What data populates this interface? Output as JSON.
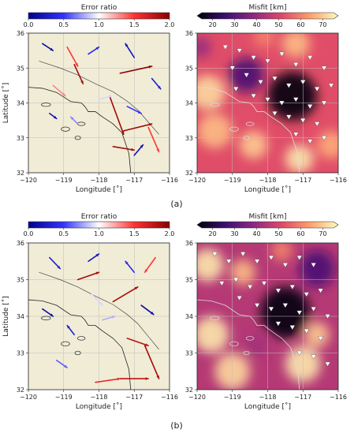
{
  "figure": {
    "subfigure_labels": [
      "(a)",
      "(b)"
    ]
  },
  "colorbars": {
    "error_ratio": {
      "title": "Error ratio",
      "ticks": [
        "0.0",
        "0.5",
        "1.0",
        "1.5",
        "2.0"
      ],
      "range": [
        0,
        2
      ],
      "colors": [
        "#00008b",
        "#3333ff",
        "#ffffff",
        "#ff3333",
        "#8b0000"
      ]
    },
    "misfit": {
      "title": "Misfit [km]",
      "ticks": [
        "20",
        "30",
        "40",
        "50",
        "60",
        "70"
      ],
      "range": [
        13,
        77
      ],
      "colors": [
        "#000004",
        "#3b0f70",
        "#8c2981",
        "#de4968",
        "#fe9f6d",
        "#fcfdbf"
      ]
    }
  },
  "colors": {
    "land_background": "#f1ecd6",
    "fault_line": "#4a4a4a",
    "station_marker": "#ffffff"
  },
  "chart_data": [
    {
      "id": "a-error-ratio",
      "type": "vector-map",
      "xlabel": "Longitude [˚]",
      "ylabel": "Latitude [˚]",
      "xlim": [
        -120,
        -116
      ],
      "ylim": [
        32,
        36
      ],
      "xticks": [
        "−120",
        "−119",
        "−118",
        "−117",
        "−116"
      ],
      "yticks": [
        "32",
        "33",
        "34",
        "35",
        "36"
      ],
      "grid": true,
      "colorbar": "error_ratio",
      "vectors": [
        {
          "lon": -118.9,
          "lat": 35.6,
          "dlon": 0.3,
          "dlat": -0.55,
          "ratio": 1.5
        },
        {
          "lon": -118.7,
          "lat": 35.1,
          "dlon": 0.25,
          "dlat": -0.55,
          "ratio": 1.9
        },
        {
          "lon": -117.4,
          "lat": 34.85,
          "dlon": 0.9,
          "dlat": 0.2,
          "ratio": 2.0
        },
        {
          "lon": -117.7,
          "lat": 34.2,
          "dlon": 0.4,
          "dlat": -1.1,
          "ratio": 1.9
        },
        {
          "lon": -117.3,
          "lat": 33.2,
          "dlon": 0.8,
          "dlat": 0.2,
          "ratio": 1.9
        },
        {
          "lon": -117.6,
          "lat": 32.75,
          "dlon": 0.6,
          "dlat": -0.1,
          "ratio": 1.9
        },
        {
          "lon": -116.6,
          "lat": 33.3,
          "dlon": 0.3,
          "dlat": -0.7,
          "ratio": 1.5
        },
        {
          "lon": -119.3,
          "lat": 34.5,
          "dlon": 0.35,
          "dlat": -0.3,
          "ratio": 1.3
        },
        {
          "lon": -118.3,
          "lat": 35.4,
          "dlon": 0.3,
          "dlat": 0.2,
          "ratio": 0.4
        },
        {
          "lon": -117.0,
          "lat": 35.3,
          "dlon": -0.25,
          "dlat": 0.4,
          "ratio": 0.2
        },
        {
          "lon": -116.5,
          "lat": 34.7,
          "dlon": 0.25,
          "dlat": -0.3,
          "ratio": 0.3
        },
        {
          "lon": -118.0,
          "lat": 34.1,
          "dlon": 0.35,
          "dlat": 0.1,
          "ratio": 0.9
        },
        {
          "lon": -117.2,
          "lat": 33.9,
          "dlon": 0.4,
          "dlat": -0.2,
          "ratio": 0.5
        },
        {
          "lon": -119.6,
          "lat": 35.7,
          "dlon": 0.3,
          "dlat": -0.2,
          "ratio": 0.1
        },
        {
          "lon": -119.4,
          "lat": 33.7,
          "dlon": 0.2,
          "dlat": -0.15,
          "ratio": 0.2
        },
        {
          "lon": -118.6,
          "lat": 33.4,
          "dlon": -0.2,
          "dlat": 0.2,
          "ratio": 0.7
        },
        {
          "lon": -117.0,
          "lat": 32.5,
          "dlon": 0.25,
          "dlat": 0.3,
          "ratio": 0.15
        }
      ],
      "stations": []
    },
    {
      "id": "a-misfit",
      "type": "heatmap",
      "xlabel": "Longitude [˚]",
      "ylabel": "",
      "xlim": [
        -120,
        -116
      ],
      "ylim": [
        32,
        36
      ],
      "xticks": [
        "−120",
        "−119",
        "−118",
        "−117",
        "−116"
      ],
      "yticks": [
        "32",
        "33",
        "34",
        "35",
        "36"
      ],
      "grid": true,
      "colorbar": "misfit",
      "base_value": 52,
      "blobs": [
        {
          "lon": -117.3,
          "lat": 34.2,
          "r": 0.7,
          "value": 14
        },
        {
          "lon": -118.6,
          "lat": 34.8,
          "r": 0.5,
          "value": 28
        },
        {
          "lon": -119.7,
          "lat": 34.3,
          "r": 0.5,
          "value": 72
        },
        {
          "lon": -119.5,
          "lat": 33.2,
          "r": 0.5,
          "value": 68
        },
        {
          "lon": -118.4,
          "lat": 32.8,
          "r": 0.4,
          "value": 70
        },
        {
          "lon": -117.1,
          "lat": 32.4,
          "r": 0.4,
          "value": 74
        },
        {
          "lon": -116.2,
          "lat": 32.8,
          "r": 0.4,
          "value": 66
        },
        {
          "lon": -117.2,
          "lat": 35.7,
          "r": 0.4,
          "value": 68
        },
        {
          "lon": -118.1,
          "lat": 35.9,
          "r": 0.3,
          "value": 60
        },
        {
          "lon": -119.9,
          "lat": 35.6,
          "r": 0.3,
          "value": 40
        }
      ],
      "stations": [
        {
          "lon": -119.2,
          "lat": 35.6
        },
        {
          "lon": -118.8,
          "lat": 35.5
        },
        {
          "lon": -118.4,
          "lat": 35.3
        },
        {
          "lon": -118.0,
          "lat": 35.2
        },
        {
          "lon": -117.6,
          "lat": 35.4
        },
        {
          "lon": -117.2,
          "lat": 35.1
        },
        {
          "lon": -116.8,
          "lat": 35.3
        },
        {
          "lon": -116.4,
          "lat": 35.0
        },
        {
          "lon": -119.0,
          "lat": 35.0
        },
        {
          "lon": -118.6,
          "lat": 34.8
        },
        {
          "lon": -118.2,
          "lat": 34.6
        },
        {
          "lon": -117.8,
          "lat": 34.7
        },
        {
          "lon": -117.4,
          "lat": 34.5
        },
        {
          "lon": -117.0,
          "lat": 34.6
        },
        {
          "lon": -116.6,
          "lat": 34.4
        },
        {
          "lon": -116.2,
          "lat": 34.5
        },
        {
          "lon": -118.4,
          "lat": 34.2
        },
        {
          "lon": -118.0,
          "lat": 34.1
        },
        {
          "lon": -117.6,
          "lat": 34.0
        },
        {
          "lon": -117.2,
          "lat": 34.1
        },
        {
          "lon": -116.8,
          "lat": 33.9
        },
        {
          "lon": -116.4,
          "lat": 34.0
        },
        {
          "lon": -117.8,
          "lat": 33.7
        },
        {
          "lon": -117.4,
          "lat": 33.6
        },
        {
          "lon": -117.0,
          "lat": 33.5
        },
        {
          "lon": -116.6,
          "lat": 33.4
        },
        {
          "lon": -117.2,
          "lat": 33.1
        },
        {
          "lon": -116.8,
          "lat": 32.9
        },
        {
          "lon": -116.4,
          "lat": 33.0
        },
        {
          "lon": -118.9,
          "lat": 34.4
        }
      ]
    },
    {
      "id": "b-error-ratio",
      "type": "vector-map",
      "xlabel": "Longitude [˚]",
      "ylabel": "Latitude [˚]",
      "xlim": [
        -120,
        -116
      ],
      "ylim": [
        32,
        36
      ],
      "xticks": [
        "−120",
        "−119",
        "−118",
        "−117",
        "−116"
      ],
      "yticks": [
        "32",
        "33",
        "34",
        "35",
        "36"
      ],
      "grid": true,
      "colorbar": "error_ratio",
      "vectors": [
        {
          "lon": -118.6,
          "lat": 35.0,
          "dlon": 0.6,
          "dlat": 0.2,
          "ratio": 1.9
        },
        {
          "lon": -117.6,
          "lat": 34.4,
          "dlon": 0.7,
          "dlat": 0.4,
          "ratio": 1.9
        },
        {
          "lon": -117.2,
          "lat": 33.4,
          "dlon": 0.6,
          "dlat": -0.2,
          "ratio": 1.8
        },
        {
          "lon": -116.7,
          "lat": 33.2,
          "dlon": 0.4,
          "dlat": -0.9,
          "ratio": 1.9
        },
        {
          "lon": -117.4,
          "lat": 32.3,
          "dlon": 0.8,
          "dlat": 0.0,
          "ratio": 1.8
        },
        {
          "lon": -118.1,
          "lat": 32.2,
          "dlon": 0.7,
          "dlat": 0.1,
          "ratio": 1.6
        },
        {
          "lon": -116.4,
          "lat": 35.6,
          "dlon": -0.3,
          "dlat": -0.4,
          "ratio": 1.5
        },
        {
          "lon": -119.4,
          "lat": 35.6,
          "dlon": 0.3,
          "dlat": -0.3,
          "ratio": 0.3
        },
        {
          "lon": -118.3,
          "lat": 35.5,
          "dlon": 0.3,
          "dlat": 0.2,
          "ratio": 0.2
        },
        {
          "lon": -117.0,
          "lat": 35.2,
          "dlon": -0.25,
          "dlat": 0.3,
          "ratio": 0.4
        },
        {
          "lon": -119.6,
          "lat": 34.2,
          "dlon": 0.3,
          "dlat": -0.2,
          "ratio": 0.15
        },
        {
          "lon": -118.7,
          "lat": 33.5,
          "dlon": -0.2,
          "dlat": 0.25,
          "ratio": 0.3
        },
        {
          "lon": -117.9,
          "lat": 33.9,
          "dlon": 0.35,
          "dlat": 0.1,
          "ratio": 0.8
        },
        {
          "lon": -119.2,
          "lat": 32.8,
          "dlon": 0.3,
          "dlat": -0.2,
          "ratio": 0.6
        },
        {
          "lon": -116.8,
          "lat": 34.3,
          "dlon": 0.35,
          "dlat": -0.25,
          "ratio": 0.1
        },
        {
          "lon": -118.2,
          "lat": 34.6,
          "dlon": 0.3,
          "dlat": -0.3,
          "ratio": 0.9
        }
      ],
      "stations": []
    },
    {
      "id": "b-misfit",
      "type": "heatmap",
      "xlabel": "Longitude [˚]",
      "ylabel": "",
      "xlim": [
        -120,
        -116
      ],
      "ylim": [
        32,
        36
      ],
      "xticks": [
        "−120",
        "−119",
        "−118",
        "−117",
        "−116"
      ],
      "yticks": [
        "32",
        "33",
        "34",
        "35",
        "36"
      ],
      "grid": true,
      "colorbar": "misfit",
      "base_value": 45,
      "blobs": [
        {
          "lon": -117.5,
          "lat": 34.1,
          "r": 0.7,
          "value": 14
        },
        {
          "lon": -116.6,
          "lat": 35.3,
          "r": 0.5,
          "value": 28
        },
        {
          "lon": -119.7,
          "lat": 35.4,
          "r": 0.45,
          "value": 74
        },
        {
          "lon": -119.6,
          "lat": 33.5,
          "r": 0.5,
          "value": 74
        },
        {
          "lon": -119.0,
          "lat": 32.5,
          "r": 0.5,
          "value": 72
        },
        {
          "lon": -118.7,
          "lat": 35.2,
          "r": 0.35,
          "value": 68
        },
        {
          "lon": -117.0,
          "lat": 32.7,
          "r": 0.5,
          "value": 74
        },
        {
          "lon": -116.6,
          "lat": 33.5,
          "r": 0.35,
          "value": 70
        },
        {
          "lon": -117.6,
          "lat": 35.8,
          "r": 0.3,
          "value": 60
        },
        {
          "lon": -118.3,
          "lat": 33.2,
          "r": 0.3,
          "value": 42
        }
      ],
      "stations": [
        {
          "lon": -119.5,
          "lat": 35.7
        },
        {
          "lon": -119.1,
          "lat": 35.5
        },
        {
          "lon": -118.7,
          "lat": 35.7
        },
        {
          "lon": -118.3,
          "lat": 35.5
        },
        {
          "lon": -117.9,
          "lat": 35.6
        },
        {
          "lon": -117.5,
          "lat": 35.4
        },
        {
          "lon": -117.1,
          "lat": 35.6
        },
        {
          "lon": -116.7,
          "lat": 35.4
        },
        {
          "lon": -118.9,
          "lat": 35.0
        },
        {
          "lon": -118.5,
          "lat": 34.8
        },
        {
          "lon": -118.1,
          "lat": 34.9
        },
        {
          "lon": -117.7,
          "lat": 34.7
        },
        {
          "lon": -117.3,
          "lat": 34.8
        },
        {
          "lon": -116.9,
          "lat": 34.6
        },
        {
          "lon": -116.5,
          "lat": 34.7
        },
        {
          "lon": -118.3,
          "lat": 34.3
        },
        {
          "lon": -117.9,
          "lat": 34.2
        },
        {
          "lon": -117.5,
          "lat": 34.3
        },
        {
          "lon": -117.1,
          "lat": 34.1
        },
        {
          "lon": -116.7,
          "lat": 34.2
        },
        {
          "lon": -116.3,
          "lat": 34.0
        },
        {
          "lon": -117.7,
          "lat": 33.8
        },
        {
          "lon": -117.3,
          "lat": 33.7
        },
        {
          "lon": -116.9,
          "lat": 33.6
        },
        {
          "lon": -116.5,
          "lat": 33.4
        },
        {
          "lon": -117.1,
          "lat": 33.0
        },
        {
          "lon": -116.7,
          "lat": 32.9
        },
        {
          "lon": -116.3,
          "lat": 32.7
        },
        {
          "lon": -118.8,
          "lat": 34.5
        },
        {
          "lon": -119.3,
          "lat": 34.9
        }
      ]
    }
  ]
}
